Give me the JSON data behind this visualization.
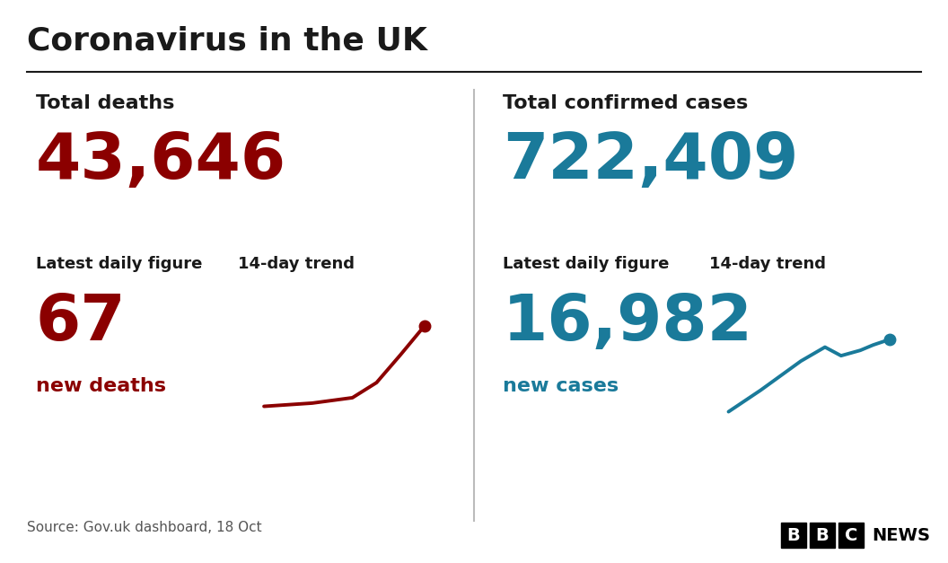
{
  "title": "Coronavirus in the UK",
  "bg_color": "#ffffff",
  "title_color": "#1a1a1a",
  "divider_color": "#1a1a1a",
  "left_panel": {
    "label": "Total deaths",
    "total_value": "43,646",
    "total_color": "#8b0000",
    "daily_label": "Latest daily figure",
    "trend_label": "14-day trend",
    "daily_value": "67",
    "daily_unit": "new deaths",
    "value_color": "#8b0000",
    "trend_color": "#8b0000",
    "trend_x": [
      0,
      0.3,
      0.55,
      0.7,
      0.85,
      1.0
    ],
    "trend_y": [
      0.1,
      0.13,
      0.18,
      0.32,
      0.58,
      0.85
    ]
  },
  "right_panel": {
    "label": "Total confirmed cases",
    "total_value": "722,409",
    "total_color": "#1a7a9a",
    "daily_label": "Latest daily figure",
    "trend_label": "14-day trend",
    "daily_value": "16,982",
    "daily_unit": "new cases",
    "value_color": "#1a7a9a",
    "trend_color": "#1a7a9a",
    "trend_x": [
      0,
      0.2,
      0.45,
      0.6,
      0.7,
      0.82,
      0.9,
      1.0
    ],
    "trend_y": [
      0.05,
      0.25,
      0.52,
      0.65,
      0.57,
      0.62,
      0.67,
      0.72
    ]
  },
  "source_text": "Source: Gov.uk dashboard, 18 Oct",
  "label_color": "#1a1a1a",
  "source_color": "#555555"
}
